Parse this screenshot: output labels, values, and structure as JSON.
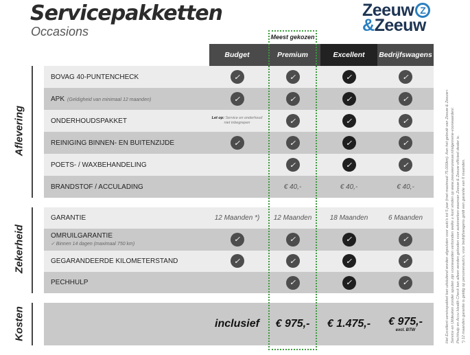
{
  "header": {
    "title": "Servicepakketten",
    "subtitle": "Occasions",
    "logo_line1": "Zeeuw",
    "logo_amp": "&",
    "logo_line2": "Zeeuw",
    "most_chosen": "Meest gekozen"
  },
  "columns": [
    "Budget",
    "Premium",
    "Excellent",
    "Bedrijfswagens"
  ],
  "colors": {
    "header_dark": "#4a4a4a",
    "header_darkest": "#222222",
    "row_light": "#ececec",
    "row_dark": "#c9c9c9",
    "highlight_border": "#3c9a3c",
    "logo_blue": "#2a7fc0",
    "logo_navy": "#1d3453"
  },
  "sections": {
    "aflevering": "Aflevering",
    "zekerheid": "Zekerheid",
    "kosten": "Kosten"
  },
  "aflevering": [
    {
      "label": "BOVAG 40-PUNTENCHECK",
      "cells": [
        "check",
        "check",
        "check",
        "check"
      ]
    },
    {
      "label": "APK",
      "note": "(Geldigheid van minimaal 12 maanden)",
      "cells": [
        "check",
        "check",
        "check",
        "check"
      ]
    },
    {
      "label": "ONDERHOUDSPAKKET",
      "budget_note_bold": "Let op:",
      "budget_note": "Service en onderhoud niet inbegrepen",
      "cells": [
        "note",
        "check",
        "check",
        "check"
      ]
    },
    {
      "label": "REINIGING BINNEN- EN BUITENZIJDE",
      "cells": [
        "check",
        "check",
        "check",
        "check"
      ]
    },
    {
      "label": "POETS- / WAXBEHANDELING",
      "cells": [
        "",
        "check",
        "check",
        "check"
      ]
    },
    {
      "label": "BRANDSTOF / ACCULADING",
      "cells": [
        "",
        "€ 40,-",
        "€ 40,-",
        "€ 40,-"
      ]
    }
  ],
  "zekerheid": [
    {
      "label": "GARANTIE",
      "cells": [
        "12 Maanden *)",
        "12 Maanden",
        "18 Maanden",
        "6 Maanden"
      ]
    },
    {
      "label": "OMRUILGARANTIE",
      "sub": "✓  Binnen 14 dagen (maximaal 750 km)",
      "cells": [
        "check",
        "check",
        "check",
        "check"
      ]
    },
    {
      "label": "GEGARANDEERDE KILOMETERSTAND",
      "cells": [
        "check",
        "check",
        "check",
        "check"
      ]
    },
    {
      "label": "PECHHULP",
      "cells": [
        "",
        "check",
        "check",
        "check"
      ]
    }
  ],
  "kosten": {
    "cells": [
      "inclusief",
      "€ 975,-",
      "€ 1.475,-",
      "€ 975,-"
    ],
    "excl": "excl. BTW"
  },
  "footnotes": [
    "Het Excellent-servicepakket kan uitsluitend worden afgesloten voor auto's tot 5 jaar (met maximaal 75.000km). Aan het gebruik van Zeeuw & Zeeuw+",
    "Service en Uitdeuken zonder spuiten zijn voorwaarden verbonden welke u kunt vinden op www.zeeuwenzeeuw.nl/algemene-voorwaarden/.",
    "Pechhulp en Accu Health Check kan alleen worden geboden voor automerken waarvan Zeeuw & Zeeuw officieel dealer is.",
    "*) 12 maanden garantie is geldig op personenauto's, voor bedrijfswagens geldt een garantie van 6 maanden."
  ]
}
